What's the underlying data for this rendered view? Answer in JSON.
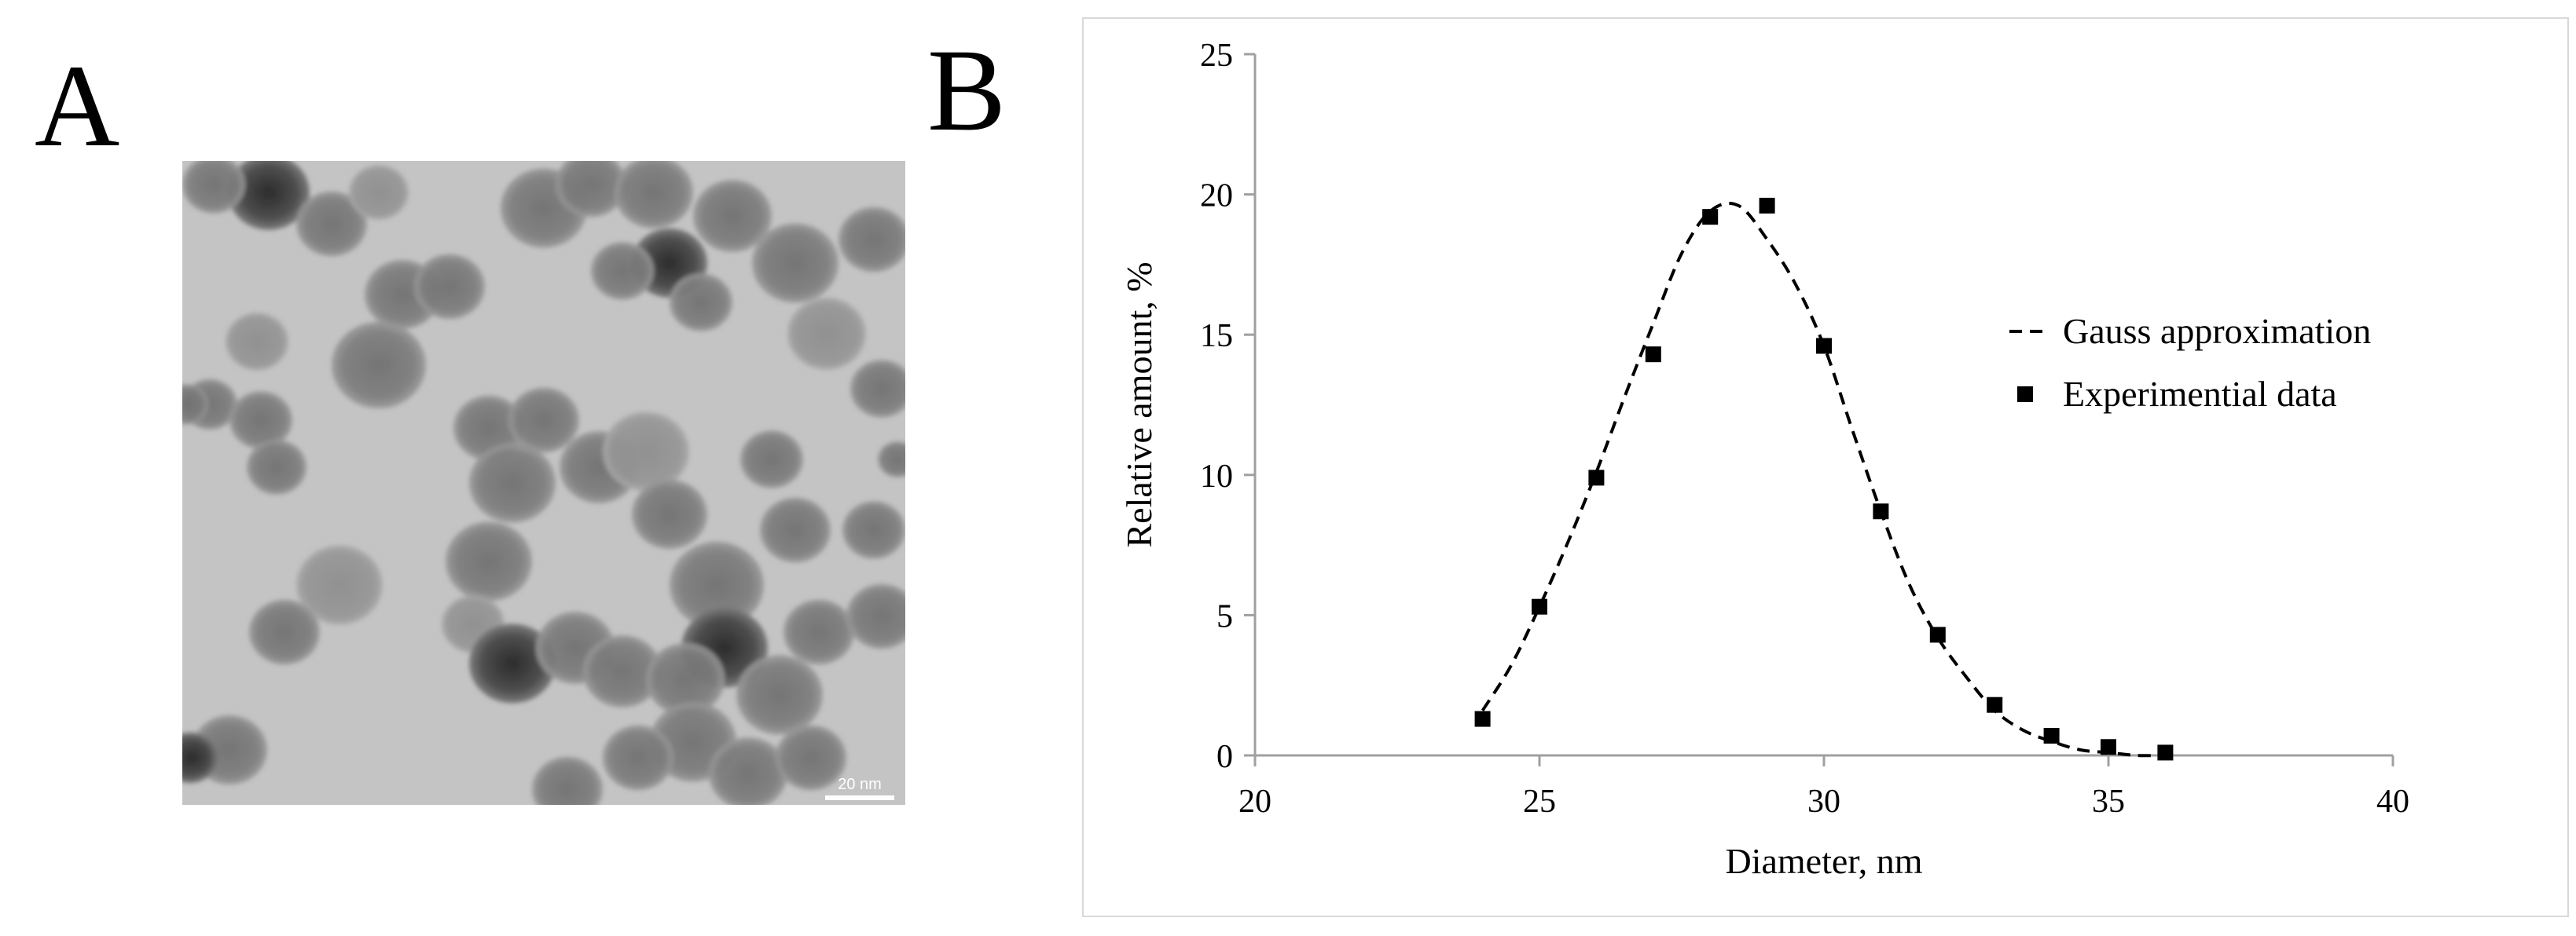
{
  "panel_a": {
    "label": "A",
    "scale_bar_text": "20 nm"
  },
  "panel_b": {
    "label": "B"
  },
  "chart_data": {
    "type": "scatter",
    "title": "",
    "xlabel": "Diameter, nm",
    "ylabel": "Relative amount, %",
    "xlim": [
      20,
      40
    ],
    "ylim": [
      0,
      25
    ],
    "x_ticks": [
      20,
      25,
      30,
      35,
      40
    ],
    "y_ticks": [
      0,
      5,
      10,
      15,
      20,
      25
    ],
    "grid": false,
    "legend_position": "right",
    "series": [
      {
        "name": "Gauss approximation",
        "style": "dashed-line",
        "color": "#000000",
        "x": [
          24,
          24.5,
          25,
          25.5,
          26,
          26.5,
          27,
          27.5,
          28,
          28.5,
          29,
          29.5,
          30,
          30.5,
          31,
          31.5,
          32,
          32.5,
          33,
          33.5,
          34,
          34.5,
          35,
          35.5,
          36
        ],
        "y": [
          1.6,
          3.2,
          5.3,
          7.6,
          10.1,
          12.8,
          15.4,
          17.9,
          19.4,
          19.6,
          18.4,
          16.8,
          14.6,
          11.6,
          8.7,
          6.1,
          4.2,
          2.8,
          1.6,
          0.9,
          0.5,
          0.2,
          0.1,
          0.0,
          0.0
        ]
      },
      {
        "name": "Experimential data",
        "style": "square-markers",
        "color": "#000000",
        "x": [
          24,
          25,
          26,
          27,
          28,
          29,
          30,
          31,
          32,
          33,
          34,
          35,
          36
        ],
        "y": [
          1.3,
          5.3,
          9.9,
          14.3,
          19.2,
          19.6,
          14.6,
          8.7,
          4.3,
          1.8,
          0.7,
          0.3,
          0.1
        ]
      }
    ]
  }
}
